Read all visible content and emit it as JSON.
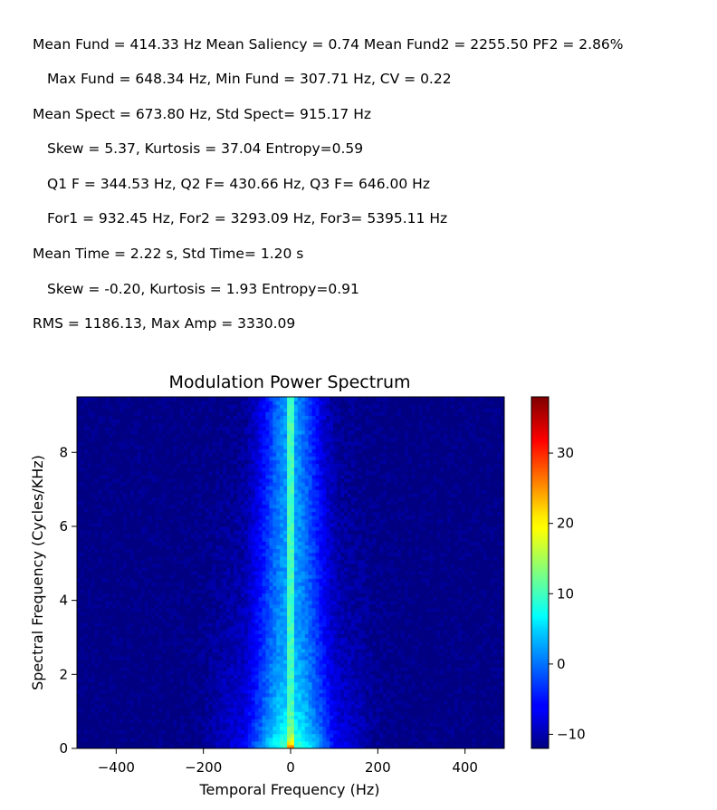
{
  "stats": {
    "lines": [
      "Mean Fund = 414.33 Hz Mean Saliency = 0.74 Mean Fund2 = 2255.50 PF2 = 2.86%",
      "Max Fund = 648.34 Hz, Min Fund = 307.71 Hz, CV = 0.22",
      "Mean Spect = 673.80 Hz, Std Spect= 915.17 Hz",
      "Skew = 5.37, Kurtosis = 37.04 Entropy=0.59",
      "Q1 F = 344.53 Hz, Q2 F= 430.66 Hz, Q3 F= 646.00 Hz",
      "For1 = 932.45 Hz, For2 = 3293.09 Hz, For3= 5395.11 Hz",
      "Mean Time = 2.22 s, Std Time= 1.20 s",
      "Skew = -0.20, Kurtosis = 1.93 Entropy=0.91",
      "RMS = 1186.13, Max Amp = 3330.09"
    ]
  },
  "chart_data": {
    "type": "heatmap",
    "title": "Modulation Power Spectrum",
    "xlabel": "Temporal Frequency (Hz)",
    "ylabel": "Spectral Frequency (Cycles/KHz)",
    "xlim": [
      -490,
      490
    ],
    "ylim": [
      0,
      9.5
    ],
    "x_ticks": [
      -400,
      -200,
      0,
      200,
      400
    ],
    "x_tick_labels": [
      "−400",
      "−200",
      "0",
      "200",
      "400"
    ],
    "y_ticks": [
      0,
      2,
      4,
      6,
      8
    ],
    "y_tick_labels": [
      "0",
      "2",
      "4",
      "6",
      "8"
    ],
    "colorbar": {
      "colormap": "jet",
      "range": [
        -12,
        38
      ],
      "ticks": [
        -10,
        0,
        10,
        20,
        30
      ],
      "tick_labels": [
        "−10",
        "0",
        "10",
        "20",
        "30"
      ]
    },
    "grid": false,
    "legend": "none"
  }
}
